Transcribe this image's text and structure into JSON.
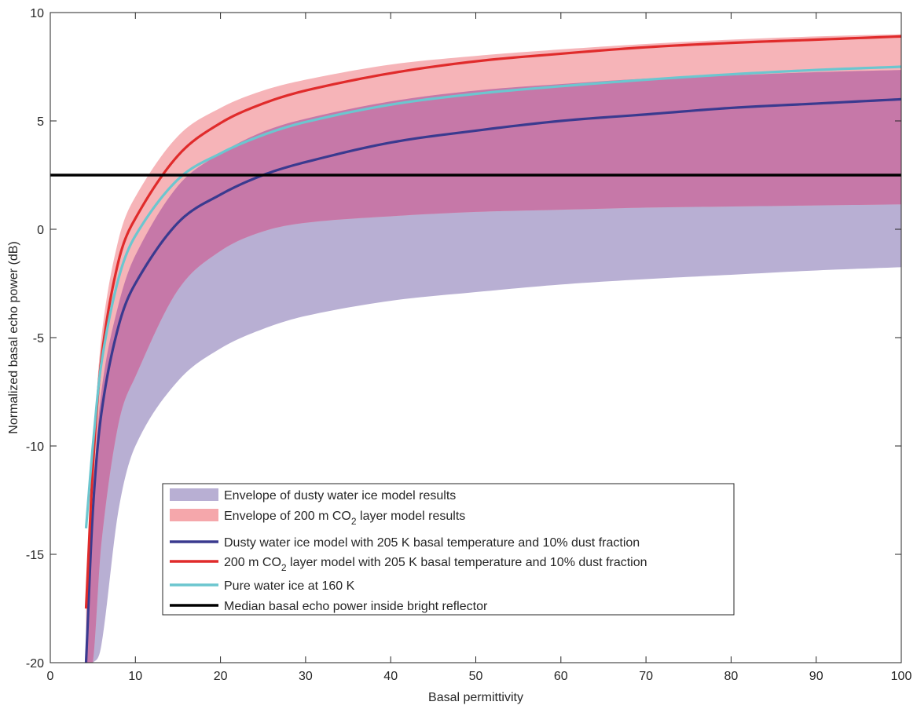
{
  "chart_data": {
    "type": "line",
    "title": "",
    "xlabel": "Basal permittivity",
    "ylabel": "Normalized basal echo power (dB)",
    "xlim": [
      0,
      100
    ],
    "ylim": [
      -20,
      10
    ],
    "xticks": [
      "0",
      "10",
      "20",
      "30",
      "40",
      "50",
      "60",
      "70",
      "80",
      "90",
      "100"
    ],
    "yticks": [
      "-20",
      "-15",
      "-10",
      "-5",
      "0",
      "5",
      "10"
    ],
    "grid": false,
    "legend_position": "bottom-center",
    "bands": [
      {
        "id": "dusty-envelope",
        "name": "Envelope of dusty water ice model results",
        "color": "#b8afd3",
        "x": [
          4.2,
          5,
          6,
          8,
          10,
          15,
          20,
          25,
          30,
          40,
          50,
          60,
          70,
          80,
          90,
          100
        ],
        "upper": [
          -20,
          -12.5,
          -7.5,
          -3.5,
          -1.2,
          2.0,
          3.5,
          4.5,
          5.1,
          5.9,
          6.4,
          6.7,
          6.95,
          7.1,
          7.25,
          7.35
        ],
        "lower": [
          -20,
          -20,
          -19.2,
          -13.0,
          -10.0,
          -7.0,
          -5.5,
          -4.6,
          -4.0,
          -3.3,
          -2.9,
          -2.55,
          -2.3,
          -2.1,
          -1.9,
          -1.75
        ]
      },
      {
        "id": "co2-envelope",
        "name": "Envelope of 200 m CO₂ layer model results",
        "color": "#f5a7ab",
        "x": [
          4.2,
          5,
          6,
          8,
          10,
          15,
          20,
          25,
          30,
          40,
          50,
          60,
          70,
          80,
          90,
          100
        ],
        "upper": [
          -17.5,
          -10.5,
          -5.0,
          -0.5,
          1.5,
          4.3,
          5.6,
          6.4,
          6.9,
          7.6,
          8.0,
          8.3,
          8.55,
          8.75,
          8.9,
          9.0
        ],
        "lower": [
          -20,
          -20,
          -14.5,
          -9.0,
          -6.8,
          -2.8,
          -1.0,
          -0.1,
          0.3,
          0.6,
          0.8,
          0.9,
          1.0,
          1.05,
          1.1,
          1.15
        ]
      }
    ],
    "series": [
      {
        "id": "dusty-model",
        "name": "Dusty water ice model with 205 K basal temperature and 10% dust fraction",
        "color": "#3a3a8f",
        "x": [
          4.2,
          5,
          6,
          8,
          10,
          15,
          20,
          25,
          30,
          40,
          50,
          60,
          70,
          80,
          90,
          100
        ],
        "y": [
          -20,
          -13.0,
          -8.5,
          -4.5,
          -2.5,
          0.3,
          1.6,
          2.5,
          3.1,
          4.0,
          4.55,
          5.0,
          5.3,
          5.6,
          5.8,
          6.0
        ]
      },
      {
        "id": "co2-model",
        "name": "200 m CO₂ layer model with 205 K basal temperature and 10% dust fraction",
        "color": "#e02b2b",
        "x": [
          4.2,
          5,
          6,
          8,
          10,
          15,
          20,
          25,
          30,
          40,
          50,
          60,
          70,
          80,
          90,
          100
        ],
        "y": [
          -17.5,
          -11.0,
          -6.0,
          -1.5,
          0.5,
          3.4,
          4.9,
          5.8,
          6.4,
          7.2,
          7.75,
          8.1,
          8.4,
          8.6,
          8.75,
          8.9
        ]
      },
      {
        "id": "pure-ice",
        "name": "Pure water ice at 160 K",
        "color": "#6cc6cf",
        "x": [
          4.2,
          5,
          6,
          8,
          10,
          15,
          20,
          25,
          30,
          40,
          50,
          60,
          70,
          80,
          90,
          100
        ],
        "y": [
          -13.8,
          -10.0,
          -6.2,
          -2.3,
          -0.3,
          2.3,
          3.5,
          4.35,
          4.95,
          5.75,
          6.25,
          6.6,
          6.9,
          7.15,
          7.35,
          7.5
        ]
      },
      {
        "id": "median-line",
        "name": "Median basal echo power inside bright reflector",
        "color": "#000000",
        "x": [
          0,
          100
        ],
        "y": [
          2.5,
          2.5
        ]
      }
    ],
    "legend": [
      {
        "kind": "patch",
        "color": "#b8afd3",
        "text": "Envelope of dusty water ice model results",
        "sub": "",
        "tail": ""
      },
      {
        "kind": "patch",
        "color": "#f5a7ab",
        "text": "Envelope of 200 m CO",
        "sub": "2",
        "tail": " layer model results"
      },
      {
        "kind": "line",
        "color": "#3a3a8f",
        "text": "Dusty water ice model with 205 K basal temperature and 10% dust fraction",
        "sub": "",
        "tail": ""
      },
      {
        "kind": "line",
        "color": "#e02b2b",
        "text": "200 m CO",
        "sub": "2",
        "tail": " layer model with 205 K basal temperature and 10% dust fraction"
      },
      {
        "kind": "line",
        "color": "#6cc6cf",
        "text": "Pure water ice at 160 K",
        "sub": "",
        "tail": ""
      },
      {
        "kind": "line",
        "color": "#000000",
        "text": "Median basal echo power inside bright reflector",
        "sub": "",
        "tail": ""
      }
    ]
  }
}
